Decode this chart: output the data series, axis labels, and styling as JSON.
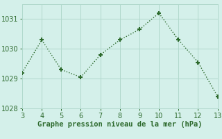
{
  "x": [
    3,
    4,
    5,
    6,
    7,
    8,
    9,
    10,
    11,
    12,
    13
  ],
  "y": [
    1029.2,
    1030.3,
    1029.3,
    1029.05,
    1029.8,
    1030.3,
    1030.65,
    1031.2,
    1030.3,
    1029.55,
    1028.4
  ],
  "line_color": "#2d6a2d",
  "background_color": "#d4f0ea",
  "grid_color": "#b0d8cc",
  "xlabel": "Graphe pression niveau de la mer (hPa)",
  "xlim": [
    3,
    13
  ],
  "ylim": [
    1028,
    1031.5
  ],
  "yticks": [
    1028,
    1029,
    1030,
    1031
  ],
  "xticks": [
    3,
    4,
    5,
    6,
    7,
    8,
    9,
    10,
    11,
    12,
    13
  ],
  "marker": "+",
  "markersize": 5,
  "markeredgewidth": 1.5,
  "linewidth": 1.0,
  "xlabel_fontsize": 7.5,
  "tick_fontsize": 7
}
